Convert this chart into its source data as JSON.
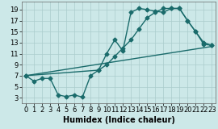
{
  "title": "",
  "xlabel": "Humidex (Indice chaleur)",
  "bg_color": "#cce8e8",
  "grid_color": "#aacccc",
  "line_color": "#1a6b6b",
  "xlim": [
    -0.5,
    23.5
  ],
  "ylim": [
    2,
    20.5
  ],
  "xticks": [
    0,
    1,
    2,
    3,
    4,
    5,
    6,
    7,
    8,
    9,
    10,
    11,
    12,
    13,
    14,
    15,
    16,
    17,
    18,
    19,
    20,
    21,
    22,
    23
  ],
  "yticks": [
    3,
    5,
    7,
    9,
    11,
    13,
    15,
    17,
    19
  ],
  "line1_x": [
    0,
    1,
    2,
    3,
    4,
    5,
    6,
    7,
    8,
    9,
    10,
    11,
    12,
    13,
    14,
    15,
    16,
    17,
    18,
    19,
    20,
    21,
    22,
    23
  ],
  "line1_y": [
    7,
    6,
    6.5,
    6.5,
    3.5,
    3.2,
    3.5,
    3.1,
    7,
    8.0,
    11,
    13.5,
    11.5,
    18.5,
    19.2,
    19.0,
    18.7,
    18.5,
    19.2,
    19.2,
    17,
    15,
    12.7,
    12.5
  ],
  "line2_x": [
    0,
    9,
    10,
    11,
    12,
    13,
    14,
    15,
    16,
    17,
    18,
    19,
    20,
    21,
    22,
    23
  ],
  "line2_y": [
    7,
    8.0,
    9.0,
    10.5,
    12.0,
    13.5,
    15.5,
    17.5,
    18.5,
    19.2,
    19.2,
    19.2,
    17.0,
    15.0,
    13.0,
    12.5
  ],
  "line3_x": [
    0,
    23
  ],
  "line3_y": [
    7,
    12.3
  ],
  "marker": "D",
  "marker_size": 2.5,
  "linewidth": 1.0,
  "xlabel_fontsize": 7,
  "tick_fontsize": 6
}
